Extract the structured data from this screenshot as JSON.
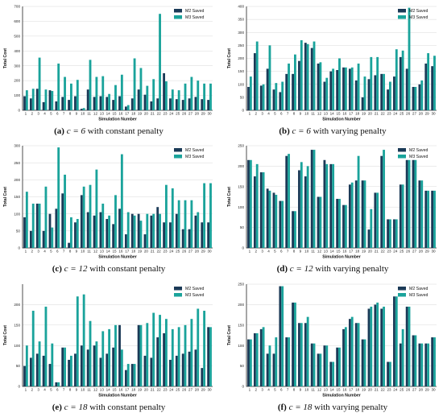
{
  "colors": {
    "m2": "#1b3a57",
    "m3": "#1aa39b"
  },
  "chart_data": [
    {
      "type": "bar",
      "caption": {
        "letter": "(a)",
        "c": "c = 6",
        "rest": "with constant penalty"
      },
      "xlabel": "Simulation Number",
      "ylabel": "Total Cost",
      "ylim": [
        0,
        700
      ],
      "yticks": [
        0,
        100,
        200,
        300,
        400,
        500,
        600,
        700
      ],
      "legend": "top-right",
      "categories": [
        "1",
        "2",
        "3",
        "4",
        "5",
        "6",
        "7",
        "8",
        "9",
        "10",
        "11",
        "12",
        "13",
        "14",
        "15",
        "16",
        "17",
        "18",
        "19",
        "20",
        "21",
        "22",
        "23",
        "24",
        "25",
        "26",
        "27",
        "28",
        "29",
        "30"
      ],
      "series": [
        {
          "name": "M2 Saved",
          "values": [
            95,
            80,
            145,
            55,
            135,
            60,
            90,
            70,
            95,
            10,
            140,
            90,
            95,
            90,
            70,
            95,
            25,
            80,
            140,
            105,
            60,
            80,
            250,
            80,
            75,
            70,
            80,
            90,
            75,
            70
          ]
        },
        {
          "name": "M3 Saved",
          "values": [
            135,
            145,
            355,
            140,
            130,
            315,
            225,
            180,
            205,
            15,
            340,
            225,
            230,
            110,
            170,
            240,
            35,
            350,
            285,
            165,
            210,
            650,
            195,
            140,
            135,
            180,
            225,
            200,
            180,
            180
          ]
        }
      ]
    },
    {
      "type": "bar",
      "caption": {
        "letter": "(b)",
        "c": "c = 6",
        "rest": "with varying penalty"
      },
      "xlabel": "Simulation Number",
      "ylabel": "Total Cost",
      "ylim": [
        0,
        400
      ],
      "yticks": [
        0,
        50,
        100,
        150,
        200,
        250,
        300,
        350,
        400
      ],
      "legend": "top-right",
      "categories": [
        "1",
        "2",
        "3",
        "4",
        "5",
        "6",
        "7",
        "8",
        "9",
        "10",
        "11",
        "12",
        "13",
        "14",
        "15",
        "16",
        "17",
        "18",
        "19",
        "20",
        "21",
        "22",
        "23",
        "24",
        "25",
        "26",
        "27",
        "28",
        "29",
        "30"
      ],
      "series": [
        {
          "name": "M2 Saved",
          "values": [
            90,
            220,
            95,
            160,
            80,
            70,
            140,
            140,
            190,
            260,
            240,
            180,
            110,
            150,
            155,
            165,
            160,
            115,
            50,
            120,
            135,
            140,
            80,
            130,
            205,
            160,
            90,
            100,
            180,
            170
          ]
        },
        {
          "name": "M3 Saved",
          "values": [
            130,
            265,
            100,
            250,
            105,
            110,
            180,
            215,
            270,
            255,
            265,
            185,
            125,
            160,
            200,
            165,
            165,
            180,
            130,
            205,
            205,
            140,
            110,
            235,
            230,
            395,
            90,
            115,
            220,
            210
          ]
        }
      ]
    },
    {
      "type": "bar",
      "caption": {
        "letter": "(c)",
        "c": "c = 12",
        "rest": "with constant penalty"
      },
      "xlabel": "Simulation Number",
      "ylabel": "Total Cost",
      "ylim": [
        0,
        300
      ],
      "yticks": [
        0,
        50,
        100,
        150,
        200,
        250,
        300
      ],
      "legend": "top-right",
      "categories": [
        "1",
        "2",
        "3",
        "4",
        "5",
        "6",
        "7",
        "8",
        "9",
        "10",
        "11",
        "12",
        "13",
        "14",
        "15",
        "16",
        "17",
        "18",
        "19",
        "20",
        "21",
        "22",
        "23",
        "24",
        "25",
        "26",
        "27",
        "28",
        "29",
        "30"
      ],
      "series": [
        {
          "name": "M2 Saved",
          "values": [
            90,
            50,
            130,
            50,
            100,
            115,
            160,
            15,
            75,
            155,
            105,
            95,
            105,
            85,
            70,
            115,
            40,
            100,
            100,
            40,
            95,
            120,
            75,
            75,
            100,
            55,
            55,
            95,
            75,
            75
          ]
        },
        {
          "name": "M3 Saved",
          "values": [
            165,
            130,
            130,
            180,
            60,
            295,
            215,
            90,
            85,
            180,
            185,
            230,
            130,
            95,
            155,
            275,
            105,
            95,
            80,
            100,
            100,
            100,
            185,
            175,
            140,
            140,
            140,
            105,
            190,
            190
          ]
        }
      ]
    },
    {
      "type": "bar",
      "caption": {
        "letter": "(d)",
        "c": "c = 12",
        "rest": "with varying penalty"
      },
      "xlabel": "Simulation Number",
      "ylabel": "Total Cost",
      "ylim": [
        0,
        250
      ],
      "yticks": [
        0,
        50,
        100,
        150,
        200,
        250
      ],
      "legend": "top-right",
      "categories": [
        "1",
        "2",
        "3",
        "4",
        "5",
        "6",
        "7",
        "8",
        "9",
        "10",
        "11",
        "12",
        "13",
        "14",
        "15",
        "16",
        "17",
        "18",
        "19",
        "20",
        "21",
        "22",
        "23",
        "24",
        "25",
        "26",
        "27",
        "28",
        "29",
        "30"
      ],
      "series": [
        {
          "name": "M2 Saved",
          "values": [
            215,
            175,
            185,
            145,
            135,
            115,
            225,
            90,
            190,
            175,
            240,
            125,
            215,
            205,
            120,
            105,
            155,
            165,
            165,
            45,
            135,
            225,
            70,
            70,
            155,
            215,
            215,
            165,
            140,
            140
          ]
        },
        {
          "name": "M3 Saved",
          "values": [
            215,
            205,
            185,
            140,
            130,
            115,
            230,
            90,
            210,
            200,
            240,
            125,
            205,
            205,
            120,
            105,
            160,
            225,
            165,
            95,
            135,
            240,
            70,
            70,
            155,
            215,
            215,
            165,
            140,
            140
          ]
        }
      ]
    },
    {
      "type": "bar",
      "caption": {
        "letter": "(e)",
        "c": "c = 18",
        "rest": "with constant penalty"
      },
      "xlabel": "Simulation Number",
      "ylabel": "Total Cost",
      "ylim": [
        0,
        250
      ],
      "yticks": [
        0,
        50,
        100,
        150,
        200
      ],
      "legend": "top-right",
      "categories": [
        "1",
        "2",
        "3",
        "4",
        "5",
        "6",
        "7",
        "8",
        "9",
        "10",
        "11",
        "12",
        "13",
        "14",
        "15",
        "16",
        "17",
        "18",
        "19",
        "20",
        "21",
        "22",
        "23",
        "24",
        "25",
        "26",
        "27",
        "28",
        "29",
        "30"
      ],
      "series": [
        {
          "name": "M2 Saved",
          "values": [
            50,
            70,
            80,
            75,
            55,
            10,
            95,
            65,
            80,
            100,
            90,
            100,
            70,
            80,
            95,
            150,
            40,
            55,
            150,
            75,
            70,
            120,
            130,
            65,
            75,
            80,
            85,
            90,
            45,
            145
          ]
        },
        {
          "name": "M3 Saved",
          "values": [
            100,
            185,
            110,
            195,
            105,
            10,
            95,
            75,
            220,
            225,
            160,
            110,
            135,
            140,
            150,
            90,
            55,
            55,
            150,
            155,
            180,
            175,
            165,
            140,
            145,
            150,
            165,
            190,
            185,
            145
          ]
        }
      ]
    },
    {
      "type": "bar",
      "caption": {
        "letter": "(f)",
        "c": "c = 18",
        "rest": "with varying penalty"
      },
      "xlabel": "Simulation Number",
      "ylabel": "Total Cost",
      "ylim": [
        0,
        250
      ],
      "yticks": [
        0,
        50,
        100,
        150,
        200,
        250
      ],
      "legend": "top-right",
      "categories": [
        "1",
        "2",
        "3",
        "4",
        "5",
        "6",
        "7",
        "8",
        "9",
        "10",
        "11",
        "12",
        "13",
        "14",
        "15",
        "16",
        "17",
        "18",
        "19",
        "20",
        "21",
        "22",
        "23",
        "24",
        "25",
        "26",
        "27",
        "28",
        "29",
        "30"
      ],
      "series": [
        {
          "name": "M2 Saved",
          "values": [
            115,
            130,
            140,
            80,
            80,
            245,
            120,
            205,
            155,
            155,
            105,
            80,
            100,
            60,
            95,
            140,
            165,
            155,
            115,
            190,
            200,
            190,
            60,
            220,
            105,
            195,
            125,
            105,
            105,
            120
          ]
        },
        {
          "name": "M3 Saved",
          "values": [
            115,
            130,
            145,
            100,
            120,
            245,
            120,
            205,
            155,
            170,
            105,
            80,
            100,
            60,
            95,
            145,
            170,
            155,
            115,
            195,
            205,
            195,
            60,
            220,
            140,
            195,
            125,
            105,
            105,
            120
          ]
        }
      ]
    }
  ]
}
